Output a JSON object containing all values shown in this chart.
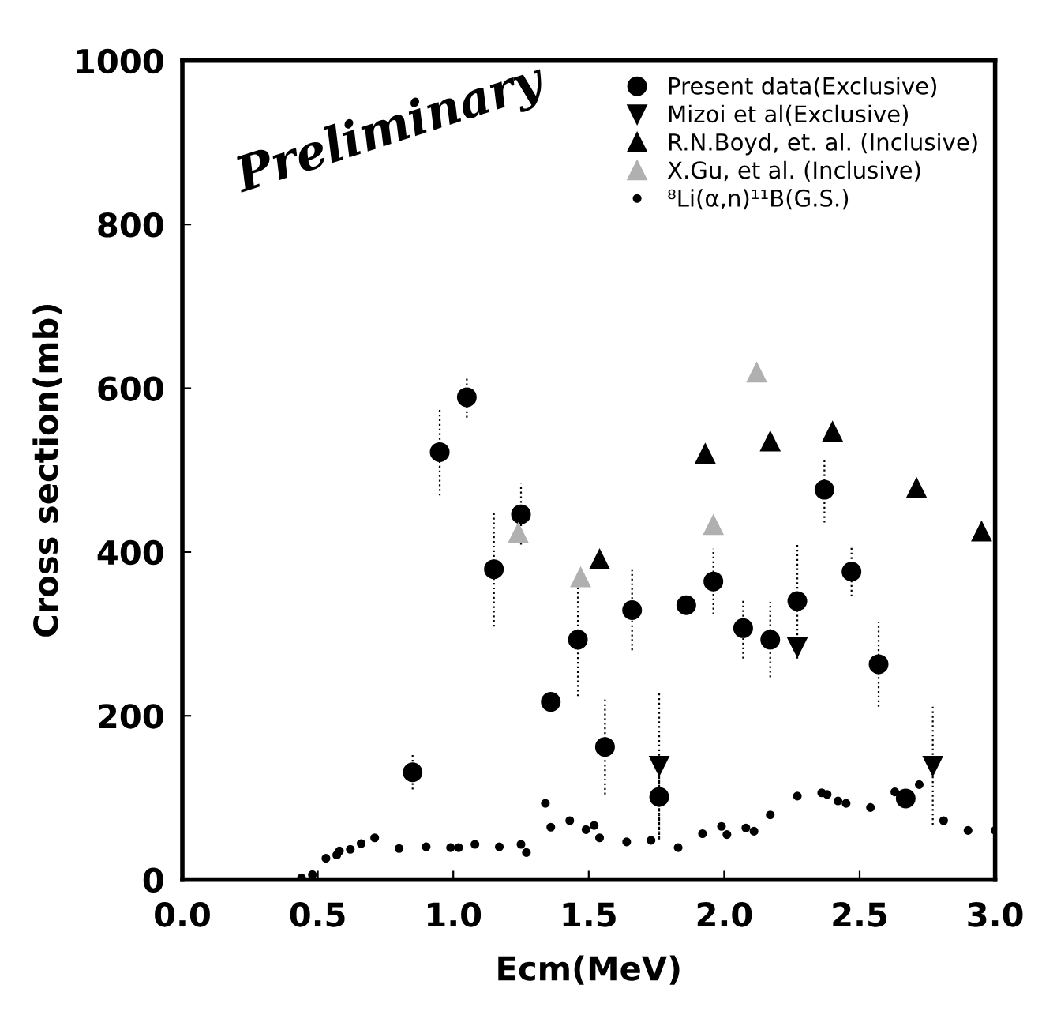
{
  "chart_data": {
    "type": "scatter",
    "xlabel": "Ecm(MeV)",
    "ylabel": "Cross section(mb)",
    "xlim": [
      0,
      3.0
    ],
    "ylim": [
      0,
      1000
    ],
    "xticks": [
      {
        "value": 0,
        "label": "0.0"
      },
      0.5,
      {
        "value": 1,
        "label": "1.0"
      },
      1.5,
      {
        "value": 2,
        "label": "2.0"
      },
      2.5,
      {
        "value": 3,
        "label": "3.0"
      }
    ],
    "yticks": [
      0,
      200,
      400,
      600,
      800,
      1000
    ],
    "grid": false,
    "legend": "top right",
    "annotations": [
      "Preliminary"
    ],
    "series": [
      {
        "name": "Present data(Exclusive)",
        "color": "#000000",
        "marker": "circle",
        "x": [
          0.85,
          0.95,
          1.05,
          1.15,
          1.25,
          1.36,
          1.46,
          1.56,
          1.66,
          1.76,
          1.86,
          1.96,
          2.07,
          2.17,
          2.27,
          2.37,
          2.47,
          2.57,
          2.67
        ],
        "values": [
          131,
          522,
          589,
          379,
          446,
          217,
          293,
          162,
          329,
          101,
          335,
          364,
          307,
          293,
          340,
          476,
          376,
          263,
          99
        ],
        "errors": [
          21,
          53,
          25,
          70,
          37,
          null,
          69,
          58,
          49,
          50,
          null,
          40,
          37,
          46,
          70,
          40,
          30,
          52,
          null
        ]
      },
      {
        "name": "Mizoi et al(Exclusive)",
        "color": "#000000",
        "marker": "triangle_down",
        "x": [
          1.76,
          2.27,
          2.77
        ],
        "values": [
          139,
          284,
          139
        ],
        "errors": [
          90,
          null,
          72
        ]
      },
      {
        "name": "R.N.Boyd, et. al. (Inclusive)",
        "color": "#000000",
        "marker": "triangle",
        "x": [
          1.54,
          1.93,
          2.17,
          2.4,
          2.71,
          2.95
        ],
        "values": [
          391,
          520,
          535,
          547,
          478,
          425
        ]
      },
      {
        "name": "X.Gu, et al. (Inclusive)",
        "color": "#b0b0b0",
        "marker": "triangle",
        "x": [
          1.24,
          1.47,
          1.96,
          2.12
        ],
        "values": [
          423,
          369,
          433,
          619
        ]
      },
      {
        "name": "⁸Li(α,n)¹¹B(G.S.)",
        "color": "#000000",
        "marker": "dot",
        "x": [
          0.44,
          0.48,
          0.53,
          0.57,
          0.58,
          0.62,
          0.66,
          0.71,
          0.8,
          0.9,
          0.99,
          1.02,
          1.08,
          1.17,
          1.25,
          1.27,
          1.34,
          1.36,
          1.43,
          1.49,
          1.52,
          1.54,
          1.64,
          1.73,
          1.83,
          1.92,
          1.99,
          2.01,
          2.08,
          2.11,
          2.17,
          2.27,
          2.36,
          2.38,
          2.42,
          2.45,
          2.54,
          2.63,
          2.72,
          2.81,
          2.9,
          3.0
        ],
        "values": [
          2,
          6,
          26,
          30,
          35,
          37,
          44,
          51,
          38,
          40,
          39,
          39,
          43,
          40,
          43,
          33,
          93,
          64,
          72,
          61,
          66,
          51,
          46,
          48,
          39,
          56,
          65,
          55,
          63,
          59,
          79,
          102,
          106,
          104,
          96,
          93,
          88,
          107,
          116,
          72,
          60,
          60
        ]
      }
    ]
  }
}
